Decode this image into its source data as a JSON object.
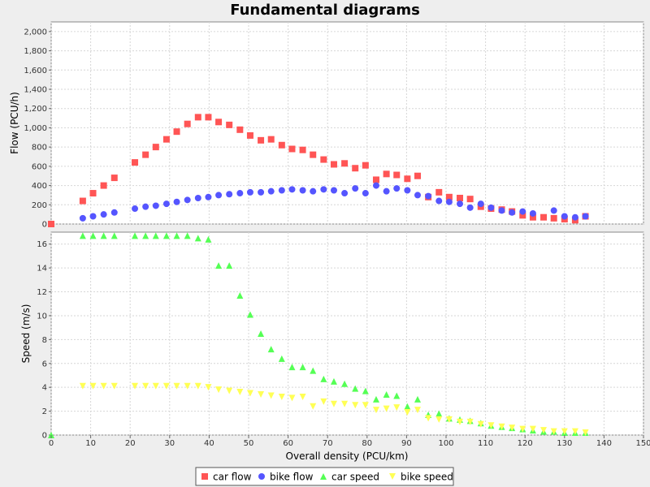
{
  "chart_data": {
    "type": "scatter",
    "title": "Fundamental diagrams",
    "xlabel": "Overall density (PCU/km)",
    "xlim": [
      0,
      150
    ],
    "xticks": [
      0,
      10,
      20,
      30,
      40,
      50,
      60,
      70,
      80,
      90,
      100,
      110,
      120,
      130,
      140,
      150
    ],
    "grid": true,
    "legend_position": "bottom",
    "subplots": [
      {
        "ylabel": "Flow (PCU/h)",
        "ylim": [
          0,
          2100
        ],
        "yticks": [
          0,
          200,
          400,
          600,
          800,
          1000,
          1200,
          1400,
          1600,
          1800,
          2000
        ],
        "ytick_labels": [
          "0",
          "200",
          "400",
          "600",
          "800",
          "1,000",
          "1,200",
          "1,400",
          "1,600",
          "1,800",
          "2,000"
        ],
        "series": [
          {
            "name": "car flow",
            "marker": "square",
            "color": "#ff5555",
            "x": [
              0,
              8,
              10.6,
              13.3,
              16,
              21.2,
              23.9,
              26.5,
              29.2,
              31.8,
              34.5,
              37.2,
              39.8,
              42.4,
              45.1,
              47.8,
              50.4,
              53.1,
              55.7,
              58.4,
              61,
              63.7,
              66.3,
              69,
              71.6,
              74.3,
              77,
              79.6,
              82.3,
              84.9,
              87.5,
              90.2,
              92.8,
              95.5,
              98.2,
              100.8,
              103.5,
              106.1,
              108.8,
              111.4,
              114.1,
              116.7,
              119.4,
              122,
              124.7,
              127.3,
              130,
              132.7,
              135.3
            ],
            "y": [
              0,
              240,
              320,
              400,
              480,
              640,
              720,
              800,
              880,
              960,
              1040,
              1110,
              1110,
              1060,
              1030,
              980,
              920,
              870,
              880,
              820,
              780,
              770,
              720,
              670,
              620,
              630,
              580,
              610,
              460,
              520,
              510,
              470,
              500,
              280,
              330,
              280,
              270,
              260,
              180,
              160,
              150,
              130,
              90,
              70,
              70,
              60,
              50,
              40,
              80
            ]
          },
          {
            "name": "bike flow",
            "marker": "circle",
            "color": "#5555ff",
            "x": [
              8,
              10.6,
              13.3,
              16,
              21.2,
              23.9,
              26.5,
              29.2,
              31.8,
              34.5,
              37.2,
              39.8,
              42.4,
              45.1,
              47.8,
              50.4,
              53.1,
              55.7,
              58.4,
              61,
              63.7,
              66.3,
              69,
              71.6,
              74.3,
              77,
              79.6,
              82.3,
              84.9,
              87.5,
              90.2,
              92.8,
              95.5,
              98.2,
              100.8,
              103.5,
              106.1,
              108.8,
              111.4,
              114.1,
              116.7,
              119.4,
              122,
              127.3,
              130,
              132.7,
              135.3
            ],
            "y": [
              60,
              80,
              100,
              120,
              160,
              180,
              190,
              210,
              230,
              250,
              270,
              280,
              300,
              310,
              320,
              330,
              330,
              340,
              350,
              360,
              350,
              340,
              360,
              350,
              320,
              370,
              320,
              400,
              340,
              370,
              350,
              300,
              290,
              240,
              230,
              210,
              170,
              210,
              170,
              140,
              120,
              130,
              110,
              140,
              80,
              70,
              80
            ]
          }
        ]
      },
      {
        "ylabel": "Speed (m/s)",
        "ylim": [
          0,
          17
        ],
        "yticks": [
          0,
          2,
          4,
          6,
          8,
          10,
          12,
          14,
          16
        ],
        "ytick_labels": [
          "0",
          "2",
          "4",
          "6",
          "8",
          "10",
          "12",
          "14",
          "16"
        ],
        "series": [
          {
            "name": "car speed",
            "marker": "triangle",
            "color": "#55ff55",
            "x": [
              0,
              8,
              10.6,
              13.3,
              16,
              21.2,
              23.9,
              26.5,
              29.2,
              31.8,
              34.5,
              37.2,
              39.8,
              42.4,
              45.1,
              47.8,
              50.4,
              53.1,
              55.7,
              58.4,
              61,
              63.7,
              66.3,
              69,
              71.6,
              74.3,
              77,
              79.6,
              82.3,
              84.9,
              87.5,
              90.2,
              92.8,
              95.5,
              98.2,
              100.8,
              103.5,
              106.1,
              108.8,
              111.4,
              114.1,
              116.7,
              119.4,
              122,
              124.7,
              127.3,
              130,
              132.7,
              135.3
            ],
            "y": [
              0,
              16.7,
              16.7,
              16.7,
              16.7,
              16.7,
              16.7,
              16.7,
              16.7,
              16.7,
              16.7,
              16.5,
              16.4,
              14.2,
              14.2,
              11.7,
              10.1,
              8.5,
              7.2,
              6.4,
              5.7,
              5.7,
              5.4,
              4.7,
              4.5,
              4.3,
              3.9,
              3.7,
              3.0,
              3.4,
              3.3,
              2.4,
              3.0,
              1.7,
              1.8,
              1.4,
              1.3,
              1.2,
              1.0,
              0.8,
              0.7,
              0.6,
              0.5,
              0.4,
              0.3,
              0.3,
              0.2,
              0.2,
              0.2
            ]
          },
          {
            "name": "bike speed",
            "marker": "triangle-down",
            "color": "#ffff55",
            "x": [
              8,
              10.6,
              13.3,
              16,
              21.2,
              23.9,
              26.5,
              29.2,
              31.8,
              34.5,
              37.2,
              39.8,
              42.4,
              45.1,
              47.8,
              50.4,
              53.1,
              55.7,
              58.4,
              61,
              63.7,
              66.3,
              69,
              71.6,
              74.3,
              77,
              79.6,
              82.3,
              84.9,
              87.5,
              90.2,
              92.8,
              95.5,
              98.2,
              100.8,
              103.5,
              106.1,
              108.8,
              111.4,
              114.1,
              116.7,
              119.4,
              122,
              124.7,
              127.3,
              130,
              132.7,
              135.3
            ],
            "y": [
              4.1,
              4.1,
              4.1,
              4.1,
              4.1,
              4.1,
              4.1,
              4.1,
              4.1,
              4.1,
              4.1,
              4.0,
              3.8,
              3.7,
              3.6,
              3.5,
              3.4,
              3.3,
              3.2,
              3.1,
              3.2,
              2.4,
              2.8,
              2.6,
              2.6,
              2.5,
              2.5,
              2.1,
              2.2,
              2.3,
              1.9,
              2.1,
              1.4,
              1.3,
              1.3,
              1.1,
              1.1,
              0.9,
              0.8,
              0.7,
              0.6,
              0.5,
              0.5,
              0.4,
              0.3,
              0.3,
              0.3,
              0.2
            ]
          }
        ]
      }
    ]
  }
}
